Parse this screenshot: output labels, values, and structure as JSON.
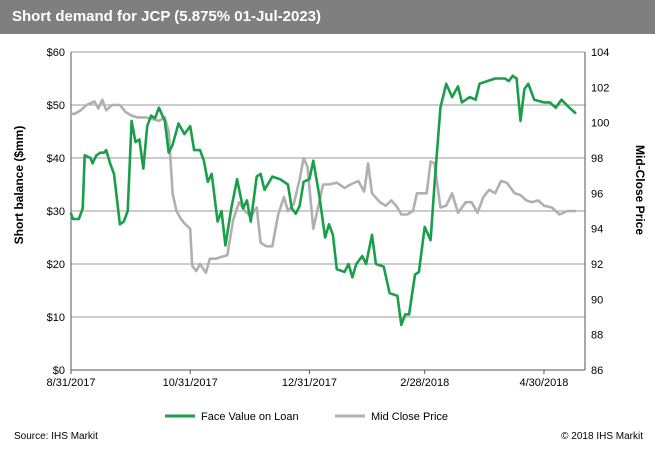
{
  "chart_data": {
    "type": "line",
    "title": "Short demand for JCP (5.875% 01-Jul-2023)",
    "ylabel": "Short balance ($mm)",
    "y2label": "Mid-Close Price",
    "ylim": [
      0,
      60
    ],
    "y2lim": [
      86,
      104
    ],
    "yticks": [
      "$0",
      "$10",
      "$20",
      "$30",
      "$40",
      "$50",
      "$60"
    ],
    "y2ticks": [
      "86",
      "88",
      "90",
      "92",
      "94",
      "96",
      "98",
      "100",
      "102",
      "104"
    ],
    "xlim": [
      "2017-08-31",
      "2018-05-21"
    ],
    "xticks": [
      {
        "date": "2017-08-31",
        "label": "8/31/2017"
      },
      {
        "date": "2017-10-31",
        "label": "10/31/2017"
      },
      {
        "date": "2017-12-31",
        "label": "12/31/2017"
      },
      {
        "date": "2018-02-28",
        "label": "2/28/2018"
      },
      {
        "date": "2018-04-30",
        "label": "4/30/2018"
      }
    ],
    "grid": "horizontal",
    "legend": "bottom",
    "series": [
      {
        "name": "Face Value on Loan",
        "axis": "left",
        "color": "#1a9e4a",
        "points": [
          [
            "2017-08-31",
            29.5
          ],
          [
            "2017-09-01",
            28.5
          ],
          [
            "2017-09-04",
            28.5
          ],
          [
            "2017-09-06",
            30.5
          ],
          [
            "2017-09-07",
            40.5
          ],
          [
            "2017-09-10",
            40.0
          ],
          [
            "2017-09-11",
            39.0
          ],
          [
            "2017-09-13",
            40.5
          ],
          [
            "2017-09-15",
            41.0
          ],
          [
            "2017-09-17",
            41.0
          ],
          [
            "2017-09-18",
            41.5
          ],
          [
            "2017-09-20",
            39.0
          ],
          [
            "2017-09-22",
            37.0
          ],
          [
            "2017-09-25",
            27.5
          ],
          [
            "2017-09-27",
            28.0
          ],
          [
            "2017-09-29",
            30.0
          ],
          [
            "2017-10-01",
            47.0
          ],
          [
            "2017-10-03",
            43.0
          ],
          [
            "2017-10-05",
            43.5
          ],
          [
            "2017-10-07",
            38.0
          ],
          [
            "2017-10-09",
            46.0
          ],
          [
            "2017-10-11",
            48.0
          ],
          [
            "2017-10-13",
            47.5
          ],
          [
            "2017-10-15",
            49.5
          ],
          [
            "2017-10-18",
            47.0
          ],
          [
            "2017-10-20",
            41.0
          ],
          [
            "2017-10-22",
            42.5
          ],
          [
            "2017-10-25",
            46.5
          ],
          [
            "2017-10-28",
            44.5
          ],
          [
            "2017-10-31",
            46.0
          ],
          [
            "2017-11-02",
            41.5
          ],
          [
            "2017-11-05",
            41.5
          ],
          [
            "2017-11-07",
            39.5
          ],
          [
            "2017-11-09",
            35.5
          ],
          [
            "2017-11-11",
            37.0
          ],
          [
            "2017-11-14",
            28.0
          ],
          [
            "2017-11-16",
            30.0
          ],
          [
            "2017-11-18",
            23.5
          ],
          [
            "2017-11-21",
            30.5
          ],
          [
            "2017-11-24",
            36.0
          ],
          [
            "2017-11-27",
            30.5
          ],
          [
            "2017-11-29",
            32.0
          ],
          [
            "2017-12-01",
            28.0
          ],
          [
            "2017-12-04",
            36.5
          ],
          [
            "2017-12-06",
            37.0
          ],
          [
            "2017-12-08",
            34.0
          ],
          [
            "2017-12-12",
            36.5
          ],
          [
            "2017-12-16",
            36.0
          ],
          [
            "2017-12-20",
            35.0
          ],
          [
            "2017-12-22",
            30.5
          ],
          [
            "2017-12-24",
            29.5
          ],
          [
            "2017-12-26",
            31.0
          ],
          [
            "2017-12-28",
            35.5
          ],
          [
            "2017-12-31",
            36.0
          ],
          [
            "2018-01-02",
            39.5
          ],
          [
            "2018-01-05",
            33.0
          ],
          [
            "2018-01-08",
            25.0
          ],
          [
            "2018-01-10",
            27.5
          ],
          [
            "2018-01-12",
            25.5
          ],
          [
            "2018-01-14",
            19.0
          ],
          [
            "2018-01-18",
            18.5
          ],
          [
            "2018-01-20",
            20.0
          ],
          [
            "2018-01-22",
            17.5
          ],
          [
            "2018-01-24",
            20.0
          ],
          [
            "2018-01-27",
            21.5
          ],
          [
            "2018-01-29",
            20.0
          ],
          [
            "2018-02-01",
            25.5
          ],
          [
            "2018-02-03",
            20.0
          ],
          [
            "2018-02-07",
            19.5
          ],
          [
            "2018-02-10",
            14.5
          ],
          [
            "2018-02-14",
            14.0
          ],
          [
            "2018-02-16",
            8.5
          ],
          [
            "2018-02-18",
            10.5
          ],
          [
            "2018-02-20",
            10.5
          ],
          [
            "2018-02-23",
            18.0
          ],
          [
            "2018-02-25",
            18.5
          ],
          [
            "2018-02-28",
            27.0
          ],
          [
            "2018-03-03",
            24.5
          ],
          [
            "2018-03-05",
            35.0
          ],
          [
            "2018-03-08",
            49.5
          ],
          [
            "2018-03-11",
            54.0
          ],
          [
            "2018-03-14",
            51.5
          ],
          [
            "2018-03-17",
            53.5
          ],
          [
            "2018-03-19",
            50.5
          ],
          [
            "2018-03-23",
            51.5
          ],
          [
            "2018-03-26",
            51.0
          ],
          [
            "2018-03-28",
            54.0
          ],
          [
            "2018-04-01",
            54.5
          ],
          [
            "2018-04-05",
            55.0
          ],
          [
            "2018-04-10",
            55.0
          ],
          [
            "2018-04-12",
            54.5
          ],
          [
            "2018-04-14",
            55.5
          ],
          [
            "2018-04-16",
            55.0
          ],
          [
            "2018-04-18",
            47.0
          ],
          [
            "2018-04-20",
            53.0
          ],
          [
            "2018-04-22",
            54.0
          ],
          [
            "2018-04-25",
            51.0
          ],
          [
            "2018-04-30",
            50.5
          ],
          [
            "2018-05-03",
            50.5
          ],
          [
            "2018-05-06",
            49.5
          ],
          [
            "2018-05-09",
            51.0
          ],
          [
            "2018-05-13",
            49.5
          ],
          [
            "2018-05-16",
            48.5
          ]
        ]
      },
      {
        "name": "Mid Close Price",
        "axis": "right",
        "color": "#b0b0b0",
        "points": [
          [
            "2017-08-31",
            100.5
          ],
          [
            "2017-09-02",
            100.5
          ],
          [
            "2017-09-05",
            100.7
          ],
          [
            "2017-09-08",
            101.0
          ],
          [
            "2017-09-12",
            101.2
          ],
          [
            "2017-09-14",
            100.8
          ],
          [
            "2017-09-16",
            101.3
          ],
          [
            "2017-09-18",
            100.7
          ],
          [
            "2017-09-21",
            101.0
          ],
          [
            "2017-09-25",
            101.0
          ],
          [
            "2017-09-28",
            100.6
          ],
          [
            "2017-10-01",
            100.4
          ],
          [
            "2017-10-04",
            100.3
          ],
          [
            "2017-10-08",
            100.3
          ],
          [
            "2017-10-12",
            100.2
          ],
          [
            "2017-10-15",
            100.1
          ],
          [
            "2017-10-18",
            100.3
          ],
          [
            "2017-10-20",
            99.5
          ],
          [
            "2017-10-22",
            96.0
          ],
          [
            "2017-10-24",
            95.0
          ],
          [
            "2017-10-26",
            94.6
          ],
          [
            "2017-10-28",
            94.3
          ],
          [
            "2017-10-31",
            94.0
          ],
          [
            "2017-11-01",
            91.9
          ],
          [
            "2017-11-03",
            91.6
          ],
          [
            "2017-11-05",
            92.0
          ],
          [
            "2017-11-08",
            91.5
          ],
          [
            "2017-11-10",
            92.3
          ],
          [
            "2017-11-13",
            92.3
          ],
          [
            "2017-11-16",
            92.4
          ],
          [
            "2017-11-19",
            92.5
          ],
          [
            "2017-11-22",
            94.5
          ],
          [
            "2017-11-25",
            95.5
          ],
          [
            "2017-11-28",
            95.0
          ],
          [
            "2017-12-01",
            94.7
          ],
          [
            "2017-12-04",
            95.2
          ],
          [
            "2017-12-06",
            93.2
          ],
          [
            "2017-12-09",
            93.0
          ],
          [
            "2017-12-12",
            93.0
          ],
          [
            "2017-12-15",
            94.8
          ],
          [
            "2017-12-18",
            95.8
          ],
          [
            "2017-12-20",
            95.0
          ],
          [
            "2017-12-23",
            95.4
          ],
          [
            "2017-12-26",
            96.8
          ],
          [
            "2017-12-28",
            98.0
          ],
          [
            "2017-12-30",
            97.5
          ],
          [
            "2018-01-02",
            94.0
          ],
          [
            "2018-01-04",
            95.0
          ],
          [
            "2018-01-07",
            96.5
          ],
          [
            "2018-01-10",
            96.5
          ],
          [
            "2018-01-14",
            96.6
          ],
          [
            "2018-01-18",
            96.3
          ],
          [
            "2018-01-21",
            96.5
          ],
          [
            "2018-01-25",
            96.7
          ],
          [
            "2018-01-28",
            96.1
          ],
          [
            "2018-01-30",
            97.7
          ],
          [
            "2018-02-01",
            96.0
          ],
          [
            "2018-02-05",
            95.5
          ],
          [
            "2018-02-08",
            95.3
          ],
          [
            "2018-02-11",
            95.6
          ],
          [
            "2018-02-14",
            95.2
          ],
          [
            "2018-02-16",
            94.8
          ],
          [
            "2018-02-19",
            94.8
          ],
          [
            "2018-02-22",
            95.0
          ],
          [
            "2018-02-24",
            96.0
          ],
          [
            "2018-02-27",
            96.0
          ],
          [
            "2018-03-01",
            96.0
          ],
          [
            "2018-03-03",
            97.8
          ],
          [
            "2018-03-05",
            97.7
          ],
          [
            "2018-03-08",
            95.2
          ],
          [
            "2018-03-11",
            95.3
          ],
          [
            "2018-03-14",
            96.0
          ],
          [
            "2018-03-17",
            94.9
          ],
          [
            "2018-03-21",
            95.5
          ],
          [
            "2018-03-24",
            95.5
          ],
          [
            "2018-03-27",
            94.9
          ],
          [
            "2018-03-30",
            95.8
          ],
          [
            "2018-04-02",
            96.2
          ],
          [
            "2018-04-05",
            96.0
          ],
          [
            "2018-04-08",
            96.7
          ],
          [
            "2018-04-11",
            96.6
          ],
          [
            "2018-04-15",
            96.0
          ],
          [
            "2018-04-18",
            95.9
          ],
          [
            "2018-04-21",
            95.6
          ],
          [
            "2018-04-24",
            95.5
          ],
          [
            "2018-04-27",
            95.6
          ],
          [
            "2018-04-30",
            95.3
          ],
          [
            "2018-05-04",
            95.2
          ],
          [
            "2018-05-08",
            94.8
          ],
          [
            "2018-05-12",
            95.0
          ],
          [
            "2018-05-16",
            95.0
          ]
        ]
      }
    ]
  },
  "footer": {
    "source": "Source: IHS Markit",
    "copyright": "© 2018 IHS Markit"
  }
}
